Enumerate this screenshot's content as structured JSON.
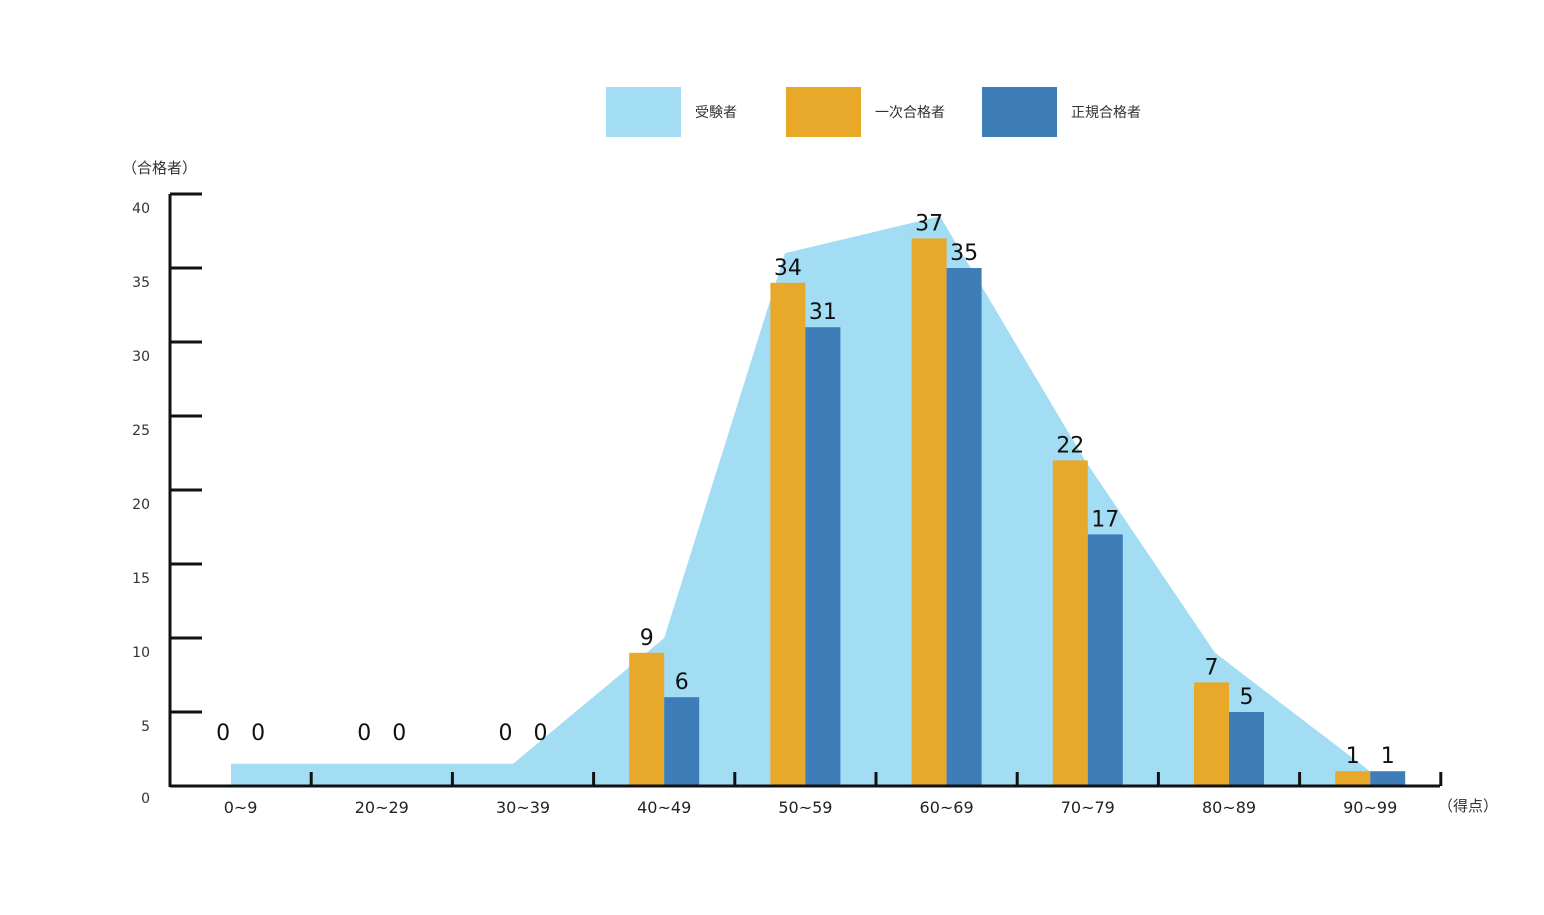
{
  "chart_data": {
    "type": "bar",
    "y_unit_label": "（合格者）",
    "x_unit_label": "（得点）",
    "ylim": [
      0,
      40
    ],
    "yticks": [
      "0",
      "5",
      "10",
      "15",
      "20",
      "25",
      "30",
      "35",
      "40"
    ],
    "categories": [
      "0~9",
      "20~29",
      "30~39",
      "40~49",
      "50~59",
      "60~69",
      "70~79",
      "80~89",
      "90~99"
    ],
    "legend_position": "top-center",
    "series": [
      {
        "name": "受験者",
        "kind": "area",
        "color": "#a3ddf3",
        "values": [
          1.5,
          1.5,
          1.5,
          10,
          36,
          38.5,
          22,
          9,
          1
        ]
      },
      {
        "name": "一次合格者",
        "kind": "bar",
        "color": "#e8a82a",
        "values": [
          0,
          0,
          0,
          9,
          34,
          37,
          22,
          7,
          1
        ],
        "labels": [
          "0",
          "0",
          "0",
          "9",
          "34",
          "37",
          "22",
          "7",
          "1"
        ]
      },
      {
        "name": "正規合格者",
        "kind": "bar",
        "color": "#3f7db8",
        "values": [
          0,
          0,
          0,
          6,
          31,
          35,
          17,
          5,
          1
        ],
        "labels": [
          "0",
          "0",
          "0",
          "6",
          "31",
          "35",
          "17",
          "5",
          "1"
        ]
      }
    ]
  }
}
